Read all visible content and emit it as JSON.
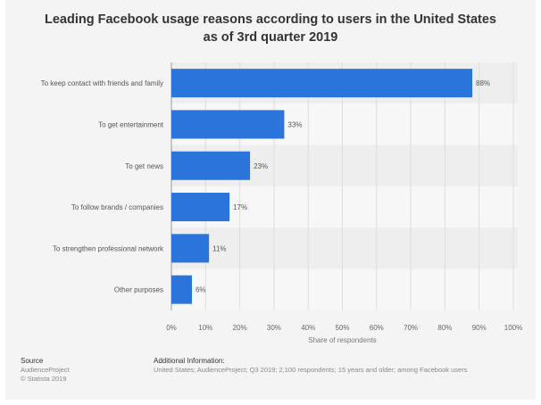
{
  "chart_data": {
    "type": "bar",
    "orientation": "horizontal",
    "title": "Leading Facebook usage reasons according to users in the United States as of 3rd quarter 2019",
    "categories": [
      "To keep contact with friends and family",
      "To get entertainment",
      "To get news",
      "To follow brands / companies",
      "To strengthen professional network",
      "Other purposes"
    ],
    "values": [
      88,
      33,
      23,
      17,
      11,
      6
    ],
    "value_labels": [
      "88%",
      "33%",
      "23%",
      "17%",
      "11%",
      "6%"
    ],
    "xlabel": "Share of respondents",
    "ylabel": "",
    "xlim": [
      0,
      100
    ],
    "ticks": [
      "0%",
      "10%",
      "20%",
      "30%",
      "40%",
      "50%",
      "60%",
      "70%",
      "80%",
      "90%",
      "100%"
    ],
    "grid": true,
    "bar_color": "#2a74db"
  },
  "footer": {
    "source_heading": "Source",
    "source": "AudienceProject",
    "copyright": "© Statista 2019",
    "info_heading": "Additional Information:",
    "info": "United States; AudienceProject; Q3 2019; 2,100 respondents; 15 years and older; among Facebook users"
  }
}
